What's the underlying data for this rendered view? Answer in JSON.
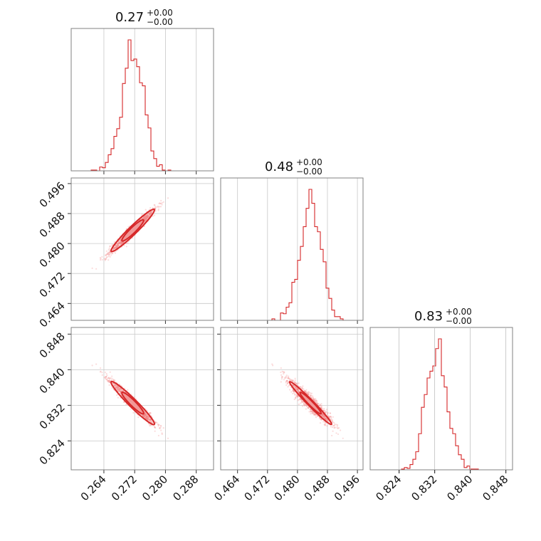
{
  "chart_data": {
    "type": "corner",
    "color": "#d62728",
    "parameters": [
      {
        "index": 0,
        "title": {
          "median": "0.27",
          "plus": "+0.00",
          "minus": "−0.00"
        },
        "range": [
          0.2555,
          0.2925
        ],
        "ticks": [
          0.264,
          0.272,
          0.28,
          0.288
        ],
        "tick_labels": [
          "0.264",
          "0.272",
          "0.280",
          "0.288"
        ],
        "center": 0.2715,
        "sigma": 0.0028
      },
      {
        "index": 1,
        "title": {
          "median": "0.48",
          "plus": "+0.00",
          "minus": "−0.00"
        },
        "range": [
          0.4595,
          0.4975
        ],
        "ticks": [
          0.464,
          0.472,
          0.48,
          0.488,
          0.496
        ],
        "tick_labels": [
          "0.464",
          "0.472",
          "0.480",
          "0.488",
          "0.496"
        ],
        "center": 0.4835,
        "sigma": 0.0028
      },
      {
        "index": 2,
        "title": {
          "median": "0.83",
          "plus": "+0.00",
          "minus": "−0.00"
        },
        "range": [
          0.8175,
          0.8495
        ],
        "ticks": [
          0.824,
          0.832,
          0.84,
          0.848
        ],
        "tick_labels": [
          "0.824",
          "0.832",
          "0.840",
          "0.848"
        ],
        "center": 0.8325,
        "sigma": 0.0024
      }
    ],
    "pairs": [
      {
        "x": 0,
        "y": 1,
        "correlation": 0.97
      },
      {
        "x": 0,
        "y": 2,
        "correlation": -0.97
      },
      {
        "x": 1,
        "y": 2,
        "correlation": -0.99
      }
    ],
    "grid": true
  }
}
